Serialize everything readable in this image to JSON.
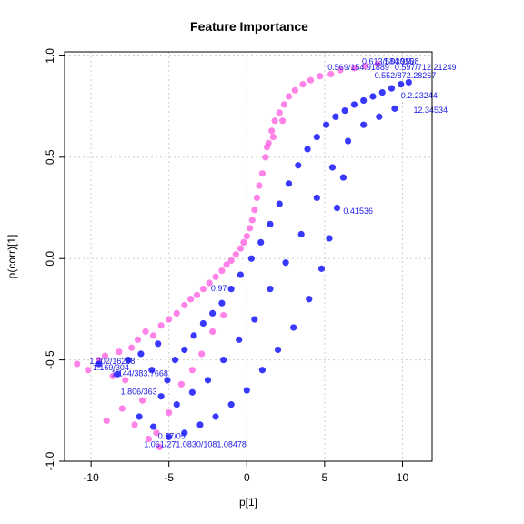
{
  "chart_data": {
    "type": "scatter",
    "title": "Feature Importance",
    "xlabel": "p[1]",
    "ylabel": "p(corr)[1]",
    "xlim": [
      -11.7,
      11.9
    ],
    "ylim": [
      -1.0,
      1.02
    ],
    "xticks": [
      -10,
      -5,
      0,
      5,
      10
    ],
    "yticks": [
      -1.0,
      -0.5,
      0.0,
      0.5,
      1.0
    ],
    "xtick_labels": [
      "-10",
      "-5",
      "0",
      "5",
      "10"
    ],
    "ytick_labels": [
      "-1.0",
      "-0.5",
      "0.0",
      "0.5",
      "1.0"
    ],
    "grid": true,
    "series": [
      {
        "color": "#ff4de0",
        "points": [
          [
            -10.9,
            -0.52
          ],
          [
            -10.2,
            -0.55
          ],
          [
            -9.5,
            -0.5
          ],
          [
            -9.1,
            -0.48
          ],
          [
            -8.6,
            -0.58
          ],
          [
            -8.2,
            -0.46
          ],
          [
            -7.8,
            -0.6
          ],
          [
            -7.4,
            -0.44
          ],
          [
            -9.0,
            -0.8
          ],
          [
            -8.0,
            -0.74
          ],
          [
            -7.2,
            -0.82
          ],
          [
            -6.7,
            -0.7
          ],
          [
            -6.3,
            -0.89
          ],
          [
            -5.8,
            -0.86
          ],
          [
            -5.6,
            -0.93
          ],
          [
            -5.0,
            -0.76
          ],
          [
            -7.0,
            -0.4
          ],
          [
            -6.5,
            -0.36
          ],
          [
            -6.0,
            -0.38
          ],
          [
            -5.5,
            -0.33
          ],
          [
            -5.0,
            -0.3
          ],
          [
            -4.5,
            -0.27
          ],
          [
            -4.0,
            -0.23
          ],
          [
            -3.6,
            -0.2
          ],
          [
            -3.2,
            -0.18
          ],
          [
            -2.8,
            -0.15
          ],
          [
            -2.4,
            -0.12
          ],
          [
            -2.0,
            -0.09
          ],
          [
            -1.6,
            -0.06
          ],
          [
            -1.3,
            -0.03
          ],
          [
            -1.0,
            -0.01
          ],
          [
            -0.7,
            0.02
          ],
          [
            -0.4,
            0.05
          ],
          [
            -0.2,
            0.08
          ],
          [
            0.0,
            0.11
          ],
          [
            0.2,
            0.15
          ],
          [
            0.35,
            0.19
          ],
          [
            0.5,
            0.24
          ],
          [
            0.65,
            0.3
          ],
          [
            0.8,
            0.36
          ],
          [
            1.0,
            0.42
          ],
          [
            1.2,
            0.5
          ],
          [
            1.4,
            0.57
          ],
          [
            1.6,
            0.63
          ],
          [
            1.8,
            0.68
          ],
          [
            2.1,
            0.72
          ],
          [
            2.4,
            0.76
          ],
          [
            2.7,
            0.8
          ],
          [
            3.1,
            0.83
          ],
          [
            3.6,
            0.86
          ],
          [
            4.1,
            0.88
          ],
          [
            4.7,
            0.9
          ],
          [
            5.4,
            0.91
          ],
          [
            6.0,
            0.93
          ],
          [
            6.9,
            0.94
          ],
          [
            7.6,
            0.95
          ],
          [
            8.4,
            0.96
          ],
          [
            -4.2,
            -0.62
          ],
          [
            -3.5,
            -0.55
          ],
          [
            -2.9,
            -0.47
          ],
          [
            -2.2,
            -0.36
          ],
          [
            -1.5,
            -0.28
          ],
          [
            1.3,
            0.55
          ],
          [
            1.7,
            0.6
          ],
          [
            2.3,
            0.68
          ]
        ]
      },
      {
        "color": "#2222ff",
        "points": [
          [
            -9.5,
            -0.52
          ],
          [
            -8.3,
            -0.57
          ],
          [
            -7.6,
            -0.5
          ],
          [
            -6.8,
            -0.47
          ],
          [
            -6.1,
            -0.55
          ],
          [
            -5.7,
            -0.42
          ],
          [
            -5.1,
            -0.6
          ],
          [
            -4.6,
            -0.5
          ],
          [
            -4.0,
            -0.45
          ],
          [
            -3.4,
            -0.38
          ],
          [
            -2.8,
            -0.32
          ],
          [
            -2.2,
            -0.27
          ],
          [
            -1.6,
            -0.22
          ],
          [
            -1.0,
            -0.15
          ],
          [
            -0.4,
            -0.08
          ],
          [
            0.3,
            0.0
          ],
          [
            0.9,
            0.08
          ],
          [
            1.5,
            0.17
          ],
          [
            2.1,
            0.27
          ],
          [
            2.7,
            0.37
          ],
          [
            3.3,
            0.46
          ],
          [
            3.9,
            0.54
          ],
          [
            4.5,
            0.6
          ],
          [
            5.1,
            0.66
          ],
          [
            5.7,
            0.7
          ],
          [
            6.3,
            0.73
          ],
          [
            6.9,
            0.76
          ],
          [
            7.5,
            0.78
          ],
          [
            8.1,
            0.8
          ],
          [
            8.7,
            0.82
          ],
          [
            9.3,
            0.84
          ],
          [
            9.9,
            0.86
          ],
          [
            10.4,
            0.87
          ],
          [
            -6.9,
            -0.78
          ],
          [
            -6.0,
            -0.83
          ],
          [
            -5.0,
            -0.88
          ],
          [
            -4.0,
            -0.86
          ],
          [
            -3.0,
            -0.82
          ],
          [
            -2.0,
            -0.78
          ],
          [
            -1.0,
            -0.72
          ],
          [
            0.0,
            -0.65
          ],
          [
            1.0,
            -0.55
          ],
          [
            2.0,
            -0.45
          ],
          [
            3.0,
            -0.34
          ],
          [
            4.0,
            -0.2
          ],
          [
            4.8,
            -0.05
          ],
          [
            5.3,
            0.1
          ],
          [
            5.8,
            0.25
          ],
          [
            6.2,
            0.4
          ],
          [
            -5.5,
            -0.68
          ],
          [
            -4.5,
            -0.72
          ],
          [
            -3.5,
            -0.66
          ],
          [
            -2.5,
            -0.6
          ],
          [
            -1.5,
            -0.5
          ],
          [
            -0.5,
            -0.4
          ],
          [
            0.5,
            -0.3
          ],
          [
            1.5,
            -0.15
          ],
          [
            2.5,
            -0.02
          ],
          [
            3.5,
            0.12
          ],
          [
            4.5,
            0.3
          ],
          [
            5.5,
            0.45
          ],
          [
            6.5,
            0.58
          ],
          [
            7.5,
            0.66
          ],
          [
            8.5,
            0.7
          ],
          [
            9.5,
            0.74
          ]
        ]
      }
    ],
    "annotations": [
      {
        "text": "0.613/584.9508",
        "x": 7.4,
        "y": 0.96
      },
      {
        "text": "1.03015",
        "x": 8.8,
        "y": 0.96
      },
      {
        "text": "0.597/712.21249",
        "x": 9.5,
        "y": 0.93
      },
      {
        "text": "0.569/154.91889",
        "x": 5.2,
        "y": 0.93
      },
      {
        "text": "0.552/872.28267",
        "x": 8.2,
        "y": 0.89
      },
      {
        "text": "0.2.23244",
        "x": 9.9,
        "y": 0.79
      },
      {
        "text": "12.34534",
        "x": 10.7,
        "y": 0.72
      },
      {
        "text": "0.41536",
        "x": 6.2,
        "y": 0.22
      },
      {
        "text": "1.202/16288",
        "x": -10.1,
        "y": -0.52
      },
      {
        "text": "1.169/304",
        "x": -9.9,
        "y": -0.55
      },
      {
        "text": "1.144/383.7668",
        "x": -8.7,
        "y": -0.58
      },
      {
        "text": "1.806/363",
        "x": -8.1,
        "y": -0.67
      },
      {
        "text": "0.97",
        "x": -2.3,
        "y": -0.16
      },
      {
        "text": "0.57/05",
        "x": -5.7,
        "y": -0.89
      },
      {
        "text": "1.061/271.0830/1081.08478",
        "x": -6.6,
        "y": -0.93
      }
    ]
  }
}
